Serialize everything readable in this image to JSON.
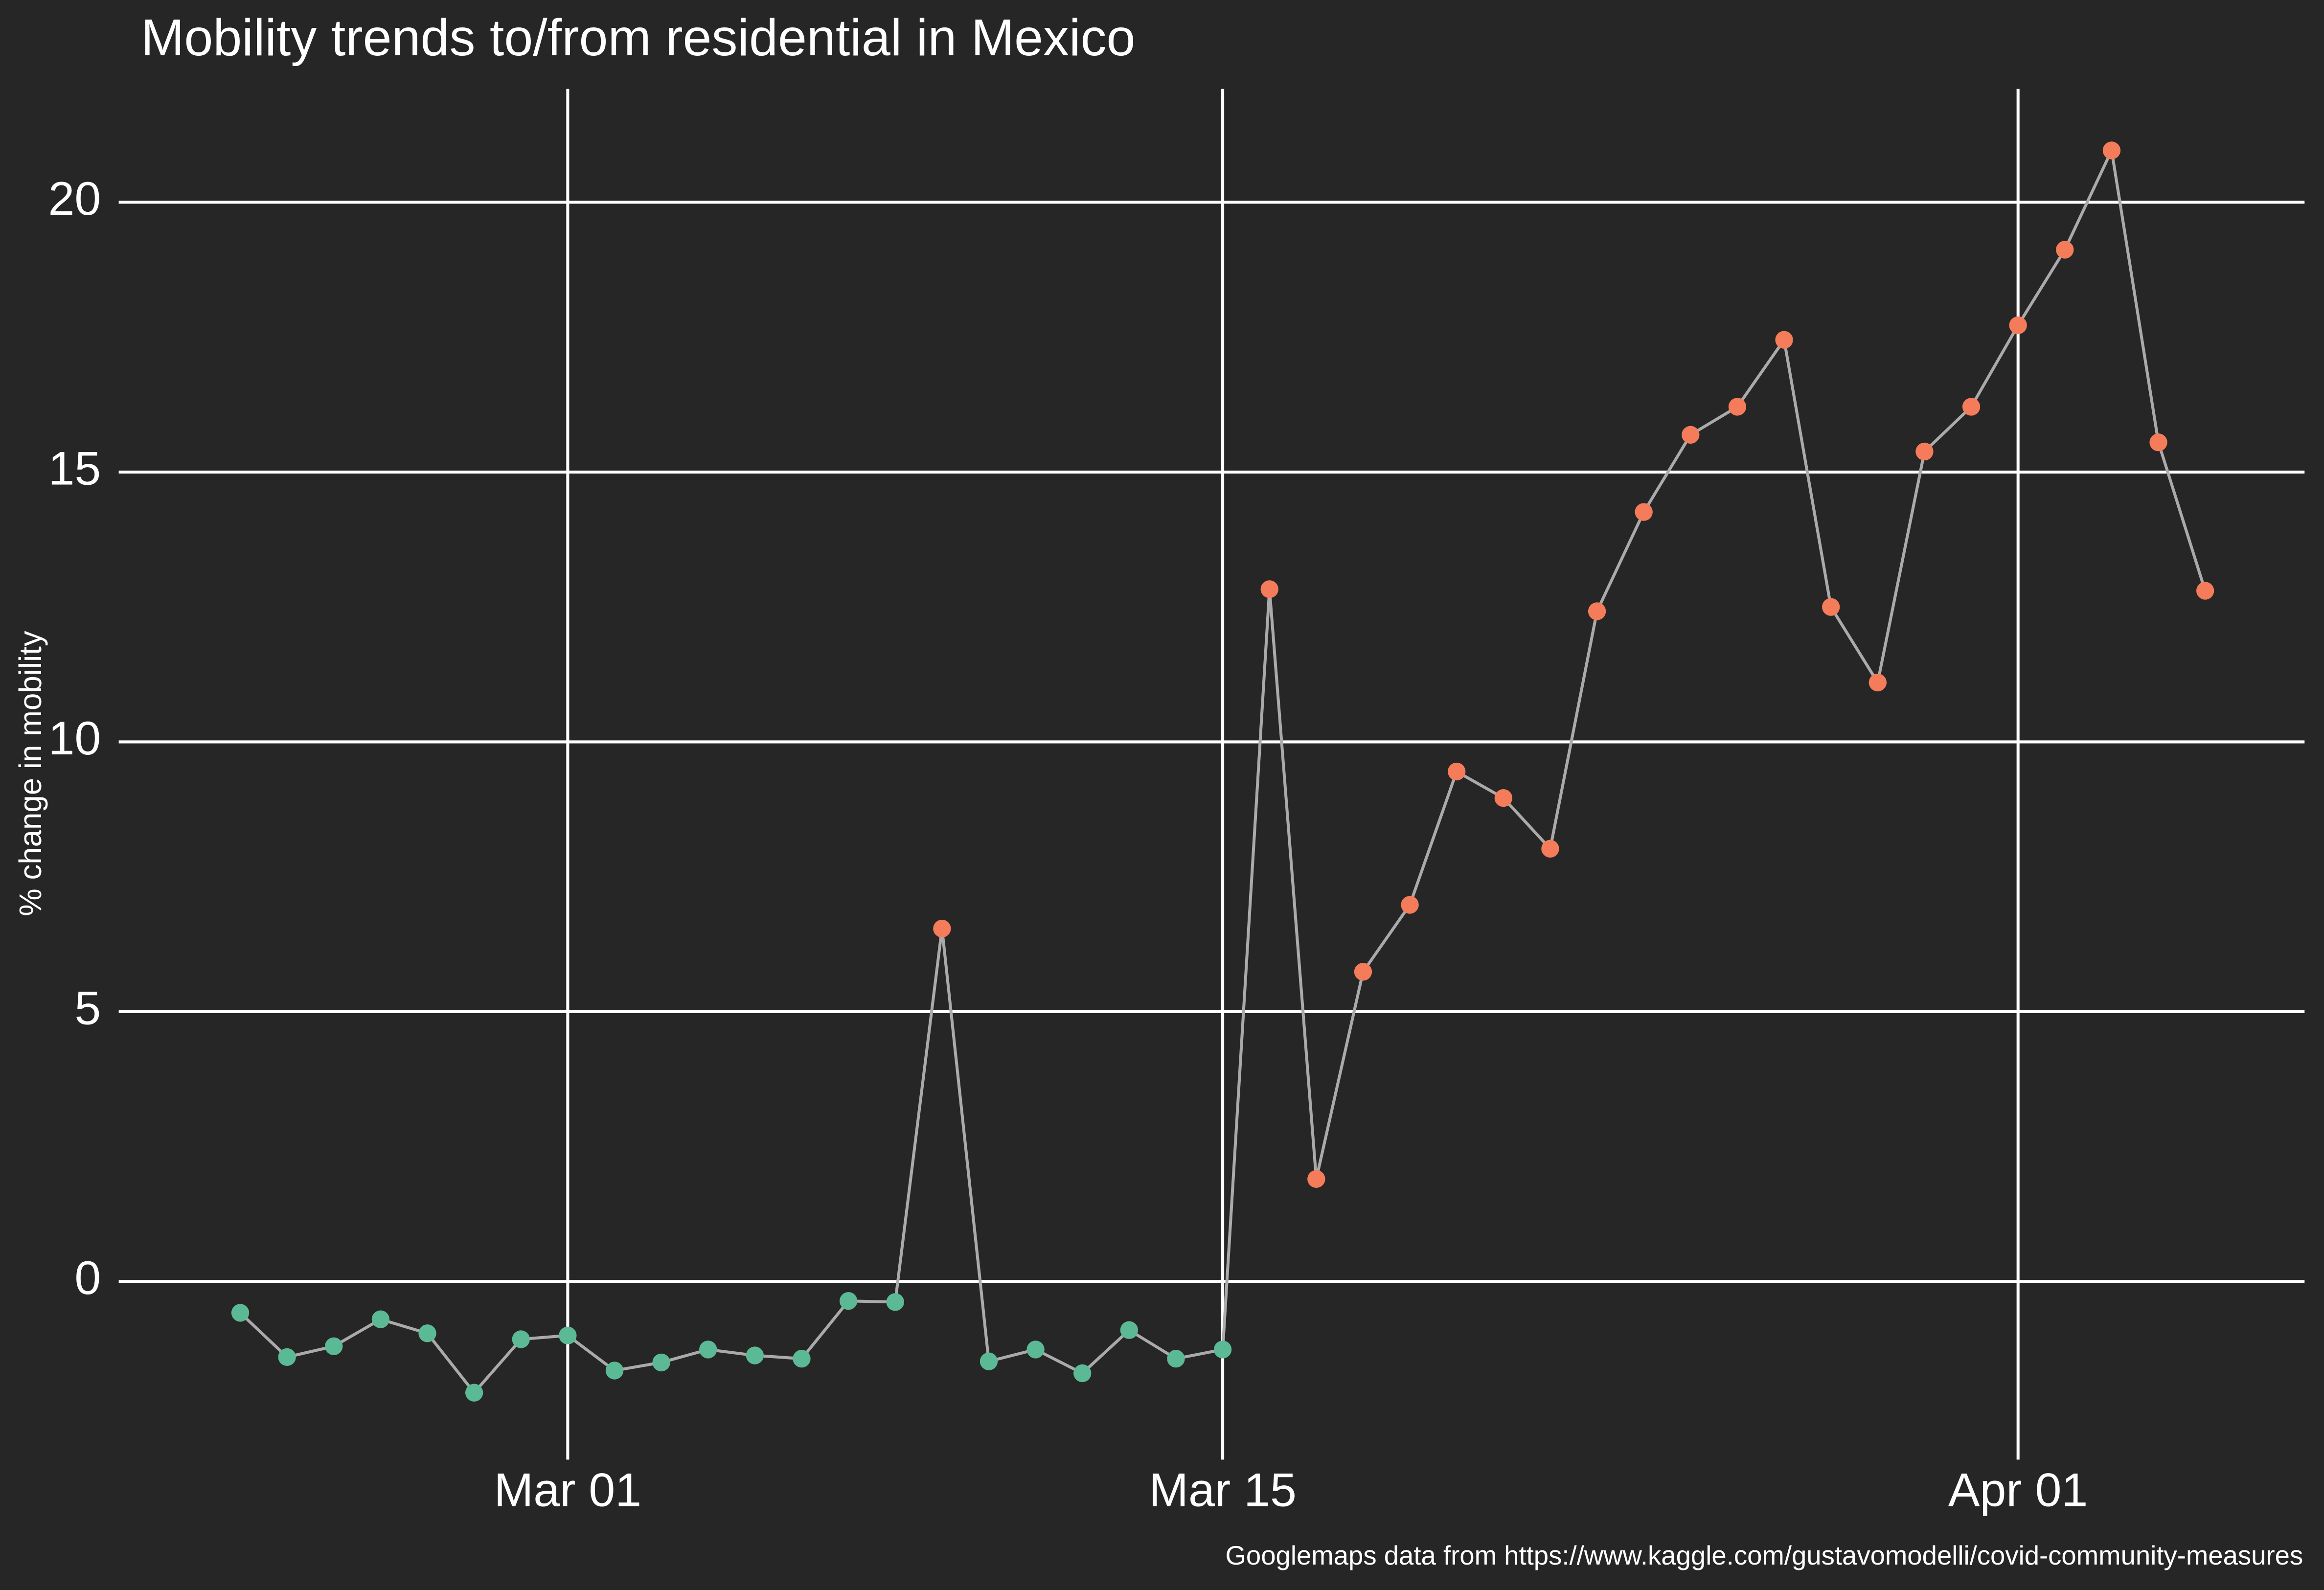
{
  "chart_data": {
    "type": "line",
    "title": "Mobility trends to/from residential in Mexico",
    "y_label": "% change in mobility",
    "caption": "Googlemaps data from https://www.kaggle.com/gustavomodelli/covid-community-measures",
    "x": [
      "Feb 23",
      "Feb 24",
      "Feb 25",
      "Feb 26",
      "Feb 27",
      "Feb 28",
      "Feb 29",
      "Mar 01",
      "Mar 02",
      "Mar 03",
      "Mar 04",
      "Mar 05",
      "Mar 06",
      "Mar 07",
      "Mar 08",
      "Mar 09",
      "Mar 10",
      "Mar 11",
      "Mar 12",
      "Mar 13",
      "Mar 14",
      "Mar 15",
      "Mar 16",
      "Mar 17",
      "Mar 18",
      "Mar 19",
      "Mar 20",
      "Mar 21",
      "Mar 22",
      "Mar 23",
      "Mar 24",
      "Mar 25",
      "Mar 26",
      "Mar 27",
      "Mar 28",
      "Mar 29",
      "Mar 30",
      "Mar 31",
      "Apr 01",
      "Apr 02",
      "Apr 03",
      "Apr 04",
      "Apr 05"
    ],
    "values": [
      -0.58,
      -1.4,
      -1.2,
      -0.7,
      -0.96,
      -2.06,
      -1.07,
      -1.0,
      -1.65,
      -1.5,
      -1.26,
      -1.37,
      -1.43,
      -0.36,
      -0.38,
      6.54,
      -1.48,
      -1.26,
      -1.7,
      -0.9,
      -1.43,
      -1.26,
      12.83,
      1.9,
      5.74,
      6.98,
      9.45,
      8.96,
      8.02,
      12.42,
      14.26,
      15.69,
      16.21,
      17.45,
      12.5,
      11.1,
      15.38,
      16.21,
      17.72,
      19.12,
      20.96,
      15.55,
      12.8
    ],
    "point_colors": [
      "#5cb995",
      "#5cb995",
      "#5cb995",
      "#5cb995",
      "#5cb995",
      "#5cb995",
      "#5cb995",
      "#5cb995",
      "#5cb995",
      "#5cb995",
      "#5cb995",
      "#5cb995",
      "#5cb995",
      "#5cb995",
      "#5cb995",
      "#f47c5a",
      "#5cb995",
      "#5cb995",
      "#5cb995",
      "#5cb995",
      "#5cb995",
      "#5cb995",
      "#f47c5a",
      "#f47c5a",
      "#f47c5a",
      "#f47c5a",
      "#f47c5a",
      "#f47c5a",
      "#f47c5a",
      "#f47c5a",
      "#f47c5a",
      "#f47c5a",
      "#f47c5a",
      "#f47c5a",
      "#f47c5a",
      "#f47c5a",
      "#f47c5a",
      "#f47c5a",
      "#f47c5a",
      "#f47c5a",
      "#f47c5a",
      "#f47c5a",
      "#f47c5a"
    ],
    "line_color": "#aaaaaa",
    "ylim": [
      -3.3,
      22.1
    ],
    "yticks": [
      0,
      5,
      10,
      15,
      20
    ],
    "xticks": [
      "Mar 01",
      "Mar 15",
      "Apr 01"
    ],
    "grid": true
  }
}
